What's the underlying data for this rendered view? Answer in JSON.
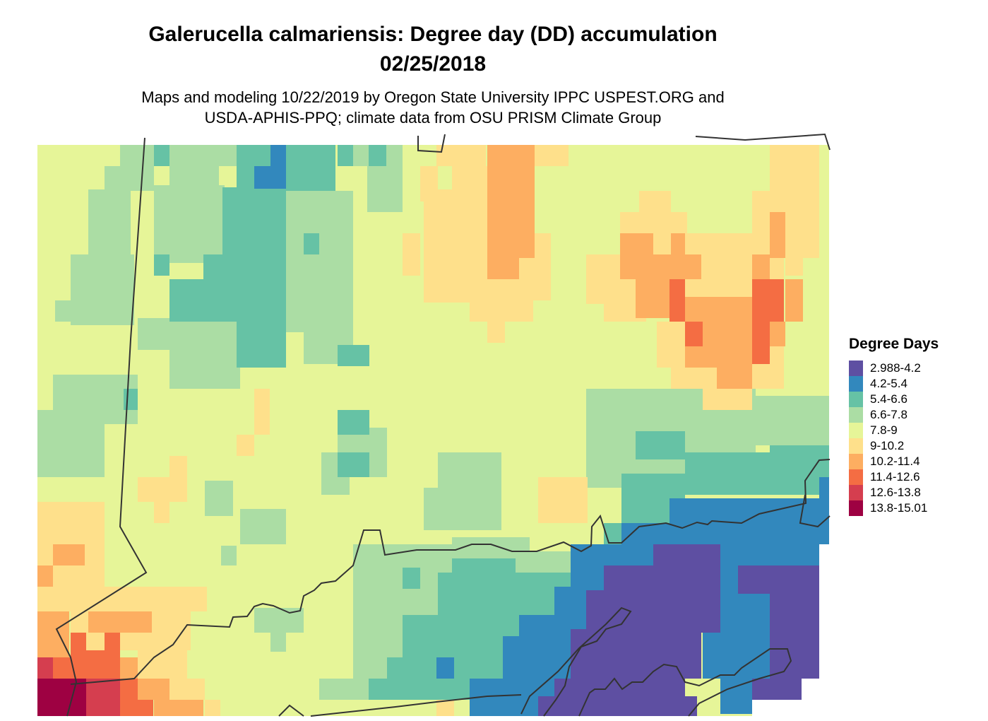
{
  "title": {
    "line1": "Galerucella calmariensis: Degree day (DD) accumulation",
    "line2": "02/25/2018"
  },
  "subtitle": {
    "line1": "Maps and modeling 10/22/2019 by Oregon State University IPPC USPEST.ORG and",
    "line2": "USDA-APHIS-PPQ; climate data from OSU PRISM Climate Group"
  },
  "legend": {
    "title": "Degree Days",
    "items": [
      {
        "label": "2.988-4.2",
        "color": "#5e4fa2"
      },
      {
        "label": "4.2-5.4",
        "color": "#3288bd"
      },
      {
        "label": "5.4-6.6",
        "color": "#66c2a5"
      },
      {
        "label": "6.6-7.8",
        "color": "#abdda4"
      },
      {
        "label": "7.8-9",
        "color": "#e6f598"
      },
      {
        "label": "9-10.2",
        "color": "#fee08b"
      },
      {
        "label": "10.2-11.4",
        "color": "#fdae61"
      },
      {
        "label": "11.4-12.6",
        "color": "#f46d43"
      },
      {
        "label": "12.6-13.8",
        "color": "#d53e4f"
      },
      {
        "label": "13.8-15.01",
        "color": "#9e0142"
      }
    ]
  }
}
